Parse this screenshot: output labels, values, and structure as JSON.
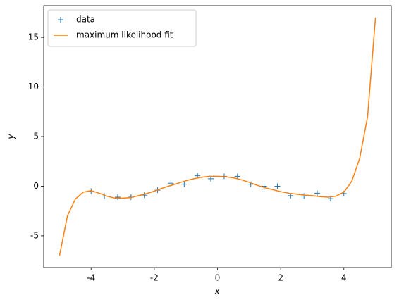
{
  "chart_data": {
    "type": "line",
    "xlabel": "x",
    "ylabel": "y",
    "xlim": [
      -5.5,
      5.5
    ],
    "ylim": [
      -8.2,
      18.2
    ],
    "xticks": [
      -4,
      -2,
      0,
      2,
      4
    ],
    "yticks": [
      -5,
      0,
      5,
      10,
      15
    ],
    "legend": "upper left",
    "series": [
      {
        "name": "data",
        "color": "#1f77b4",
        "mark": "plus",
        "x": [
          -4,
          -3.579,
          -3.158,
          -2.737,
          -2.316,
          -1.895,
          -1.474,
          -1.053,
          -0.632,
          -0.211,
          0.211,
          0.632,
          1.053,
          1.474,
          1.895,
          2.316,
          2.737,
          3.158,
          3.579,
          4
        ],
        "values": [
          -0.5,
          -1.0,
          -1.1,
          -1.1,
          -0.9,
          -0.4,
          0.3,
          0.2,
          1.05,
          0.75,
          1.0,
          1.0,
          0.2,
          0.0,
          0.0,
          -0.95,
          -1.0,
          -0.7,
          -1.25,
          -0.75
        ]
      },
      {
        "name": "maximum likelihood fit",
        "color": "#ff7f0e",
        "mark": "line",
        "x": [
          -5,
          -4.75,
          -4.5,
          -4.25,
          -4,
          -3.75,
          -3.5,
          -3.25,
          -3,
          -2.75,
          -2.5,
          -2.25,
          -2,
          -1.75,
          -1.5,
          -1.25,
          -1,
          -0.75,
          -0.5,
          -0.25,
          0,
          0.25,
          0.5,
          0.75,
          1,
          1.25,
          1.5,
          1.75,
          2,
          2.25,
          2.5,
          2.75,
          3,
          3.25,
          3.5,
          3.75,
          4,
          4.25,
          4.5,
          4.75,
          5
        ],
        "values": [
          -7.0,
          -3.0,
          -1.3,
          -0.6,
          -0.45,
          -0.7,
          -1.0,
          -1.2,
          -1.2,
          -1.15,
          -0.95,
          -0.75,
          -0.5,
          -0.2,
          0.05,
          0.3,
          0.55,
          0.75,
          0.9,
          1.0,
          1.0,
          0.95,
          0.85,
          0.65,
          0.4,
          0.1,
          -0.15,
          -0.35,
          -0.55,
          -0.7,
          -0.8,
          -0.9,
          -0.95,
          -1.05,
          -1.1,
          -1.0,
          -0.6,
          0.5,
          2.8,
          7.0,
          17.0
        ]
      }
    ]
  }
}
